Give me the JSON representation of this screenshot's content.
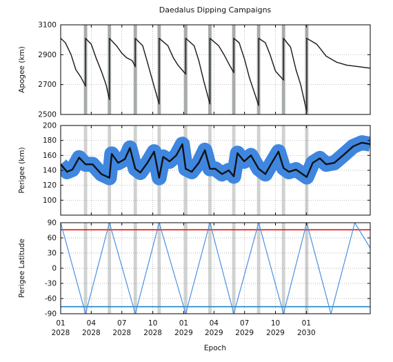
{
  "chart_data": {
    "type": "line",
    "title": "Daedalus Dipping Campaigns",
    "xlabel": "Epoch",
    "x_range": [
      "2028-01-01",
      "2030-07-10"
    ],
    "x_ticks": [
      {
        "date": "2028-01-01",
        "top": "01",
        "bottom": "2028"
      },
      {
        "date": "2028-04-01",
        "top": "04",
        "bottom": "2028"
      },
      {
        "date": "2028-07-01",
        "top": "07",
        "bottom": "2028"
      },
      {
        "date": "2028-10-01",
        "top": "10",
        "bottom": "2028"
      },
      {
        "date": "2029-01-01",
        "top": "01",
        "bottom": "2029"
      },
      {
        "date": "2029-04-01",
        "top": "04",
        "bottom": "2029"
      },
      {
        "date": "2029-07-01",
        "top": "07",
        "bottom": "2029"
      },
      {
        "date": "2029-10-01",
        "top": "10",
        "bottom": "2029"
      },
      {
        "date": "2030-01-01",
        "top": "01",
        "bottom": "2030"
      }
    ],
    "campaign_windows": [
      [
        "2028-03-10",
        "2028-03-20"
      ],
      [
        "2028-05-20",
        "2028-05-30"
      ],
      [
        "2028-08-05",
        "2028-08-15"
      ],
      [
        "2028-10-15",
        "2028-10-25"
      ],
      [
        "2029-01-02",
        "2029-01-12"
      ],
      [
        "2029-03-15",
        "2029-03-25"
      ],
      [
        "2029-05-25",
        "2029-06-04"
      ],
      [
        "2029-08-07",
        "2029-08-17"
      ],
      [
        "2029-10-20",
        "2029-10-30"
      ],
      [
        "2029-12-28",
        "2030-01-07"
      ]
    ],
    "grid": true,
    "panels": [
      {
        "ylabel": "Apogee (km)",
        "ylim": [
          2500,
          3100
        ],
        "yticks": [
          2500,
          2700,
          2900,
          3100
        ],
        "series": [
          {
            "color": "#222222",
            "points": [
              [
                "2028-01-01",
                3010
              ],
              [
                "2028-01-15",
                2980
              ],
              [
                "2028-02-01",
                2900
              ],
              [
                "2028-02-15",
                2800
              ],
              [
                "2028-03-01",
                2750
              ],
              [
                "2028-03-15",
                2690
              ],
              [
                "2028-03-15",
                3010
              ],
              [
                "2028-04-01",
                2970
              ],
              [
                "2028-04-15",
                2880
              ],
              [
                "2028-05-01",
                2790
              ],
              [
                "2028-05-15",
                2700
              ],
              [
                "2028-05-25",
                2600
              ],
              [
                "2028-05-25",
                3010
              ],
              [
                "2028-06-15",
                2960
              ],
              [
                "2028-07-01",
                2910
              ],
              [
                "2028-07-15",
                2880
              ],
              [
                "2028-08-01",
                2860
              ],
              [
                "2028-08-10",
                2820
              ],
              [
                "2028-08-10",
                3010
              ],
              [
                "2028-09-01",
                2960
              ],
              [
                "2028-09-15",
                2850
              ],
              [
                "2028-10-01",
                2720
              ],
              [
                "2028-10-20",
                2570
              ],
              [
                "2028-10-20",
                3010
              ],
              [
                "2028-11-15",
                2960
              ],
              [
                "2028-12-01",
                2880
              ],
              [
                "2028-12-15",
                2830
              ],
              [
                "2029-01-07",
                2770
              ],
              [
                "2029-01-07",
                3010
              ],
              [
                "2029-02-01",
                2960
              ],
              [
                "2029-02-15",
                2860
              ],
              [
                "2029-03-01",
                2730
              ],
              [
                "2029-03-20",
                2570
              ],
              [
                "2029-03-20",
                3010
              ],
              [
                "2029-04-15",
                2960
              ],
              [
                "2029-05-01",
                2900
              ],
              [
                "2029-05-15",
                2840
              ],
              [
                "2029-05-30",
                2780
              ],
              [
                "2029-05-30",
                3010
              ],
              [
                "2029-06-15",
                2980
              ],
              [
                "2029-07-01",
                2870
              ],
              [
                "2029-07-15",
                2750
              ],
              [
                "2029-08-12",
                2560
              ],
              [
                "2029-08-12",
                3010
              ],
              [
                "2029-09-01",
                2980
              ],
              [
                "2029-09-15",
                2900
              ],
              [
                "2029-10-01",
                2790
              ],
              [
                "2029-10-25",
                2730
              ],
              [
                "2029-10-25",
                3010
              ],
              [
                "2029-11-15",
                2950
              ],
              [
                "2029-12-01",
                2800
              ],
              [
                "2029-12-15",
                2700
              ],
              [
                "2030-01-02",
                2520
              ],
              [
                "2030-01-02",
                3010
              ],
              [
                "2030-02-01",
                2970
              ],
              [
                "2030-03-01",
                2890
              ],
              [
                "2030-04-01",
                2850
              ],
              [
                "2030-05-01",
                2830
              ],
              [
                "2030-07-10",
                2810
              ]
            ]
          }
        ]
      },
      {
        "ylabel": "Perigee (km)",
        "ylim": [
          80,
          200
        ],
        "yticks": [
          100,
          120,
          140,
          160,
          180,
          200
        ],
        "series": [
          {
            "color": "#111111",
            "band_color": "#3f86df",
            "band_halfwidth_km": 10,
            "points": [
              [
                "2028-01-01",
                148
              ],
              [
                "2028-01-20",
                138
              ],
              [
                "2028-02-05",
                141
              ],
              [
                "2028-02-25",
                157
              ],
              [
                "2028-03-15",
                148
              ],
              [
                "2028-04-05",
                148
              ],
              [
                "2028-05-01",
                135
              ],
              [
                "2028-05-25",
                130
              ],
              [
                "2028-06-01",
                162
              ],
              [
                "2028-06-20",
                150
              ],
              [
                "2028-07-10",
                155
              ],
              [
                "2028-07-25",
                170
              ],
              [
                "2028-08-10",
                142
              ],
              [
                "2028-08-25",
                137
              ],
              [
                "2028-09-15",
                150
              ],
              [
                "2028-10-05",
                165
              ],
              [
                "2028-10-20",
                130
              ],
              [
                "2028-11-01",
                158
              ],
              [
                "2028-11-20",
                152
              ],
              [
                "2028-12-10",
                160
              ],
              [
                "2028-12-28",
                175
              ],
              [
                "2029-01-07",
                142
              ],
              [
                "2029-01-25",
                138
              ],
              [
                "2029-02-15",
                150
              ],
              [
                "2029-03-05",
                167
              ],
              [
                "2029-03-20",
                142
              ],
              [
                "2029-04-05",
                142
              ],
              [
                "2029-04-25",
                135
              ],
              [
                "2029-05-15",
                140
              ],
              [
                "2029-05-30",
                132
              ],
              [
                "2029-06-10",
                163
              ],
              [
                "2029-06-30",
                152
              ],
              [
                "2029-07-20",
                160
              ],
              [
                "2029-08-12",
                142
              ],
              [
                "2029-09-01",
                135
              ],
              [
                "2029-09-20",
                150
              ],
              [
                "2029-10-10",
                165
              ],
              [
                "2029-10-25",
                143
              ],
              [
                "2029-11-10",
                138
              ],
              [
                "2029-12-01",
                141
              ],
              [
                "2030-01-02",
                131
              ],
              [
                "2030-01-20",
                150
              ],
              [
                "2030-02-10",
                156
              ],
              [
                "2030-03-01",
                148
              ],
              [
                "2030-03-25",
                150
              ],
              [
                "2030-04-20",
                160
              ],
              [
                "2030-05-20",
                172
              ],
              [
                "2030-06-15",
                177
              ],
              [
                "2030-07-10",
                175
              ]
            ]
          }
        ]
      },
      {
        "ylabel": "Perigee Latitude",
        "ylim": [
          -90,
          90
        ],
        "yticks": [
          -90,
          -60,
          -30,
          0,
          30,
          60,
          90
        ],
        "reference_lines": [
          {
            "value": 76,
            "color": "#e0201c"
          },
          {
            "value": -76,
            "color": "#2b8ec8"
          }
        ],
        "series": [
          {
            "color": "#4a90e2",
            "points": [
              [
                "2028-01-01",
                90
              ],
              [
                "2028-03-15",
                -90
              ],
              [
                "2028-05-25",
                90
              ],
              [
                "2028-08-10",
                -90
              ],
              [
                "2028-10-20",
                90
              ],
              [
                "2029-01-07",
                -90
              ],
              [
                "2029-03-20",
                90
              ],
              [
                "2029-05-30",
                -90
              ],
              [
                "2029-08-12",
                90
              ],
              [
                "2029-10-25",
                -90
              ],
              [
                "2030-01-02",
                90
              ],
              [
                "2030-03-15",
                -90
              ],
              [
                "2030-05-25",
                90
              ],
              [
                "2030-07-10",
                40
              ]
            ]
          }
        ]
      }
    ]
  }
}
